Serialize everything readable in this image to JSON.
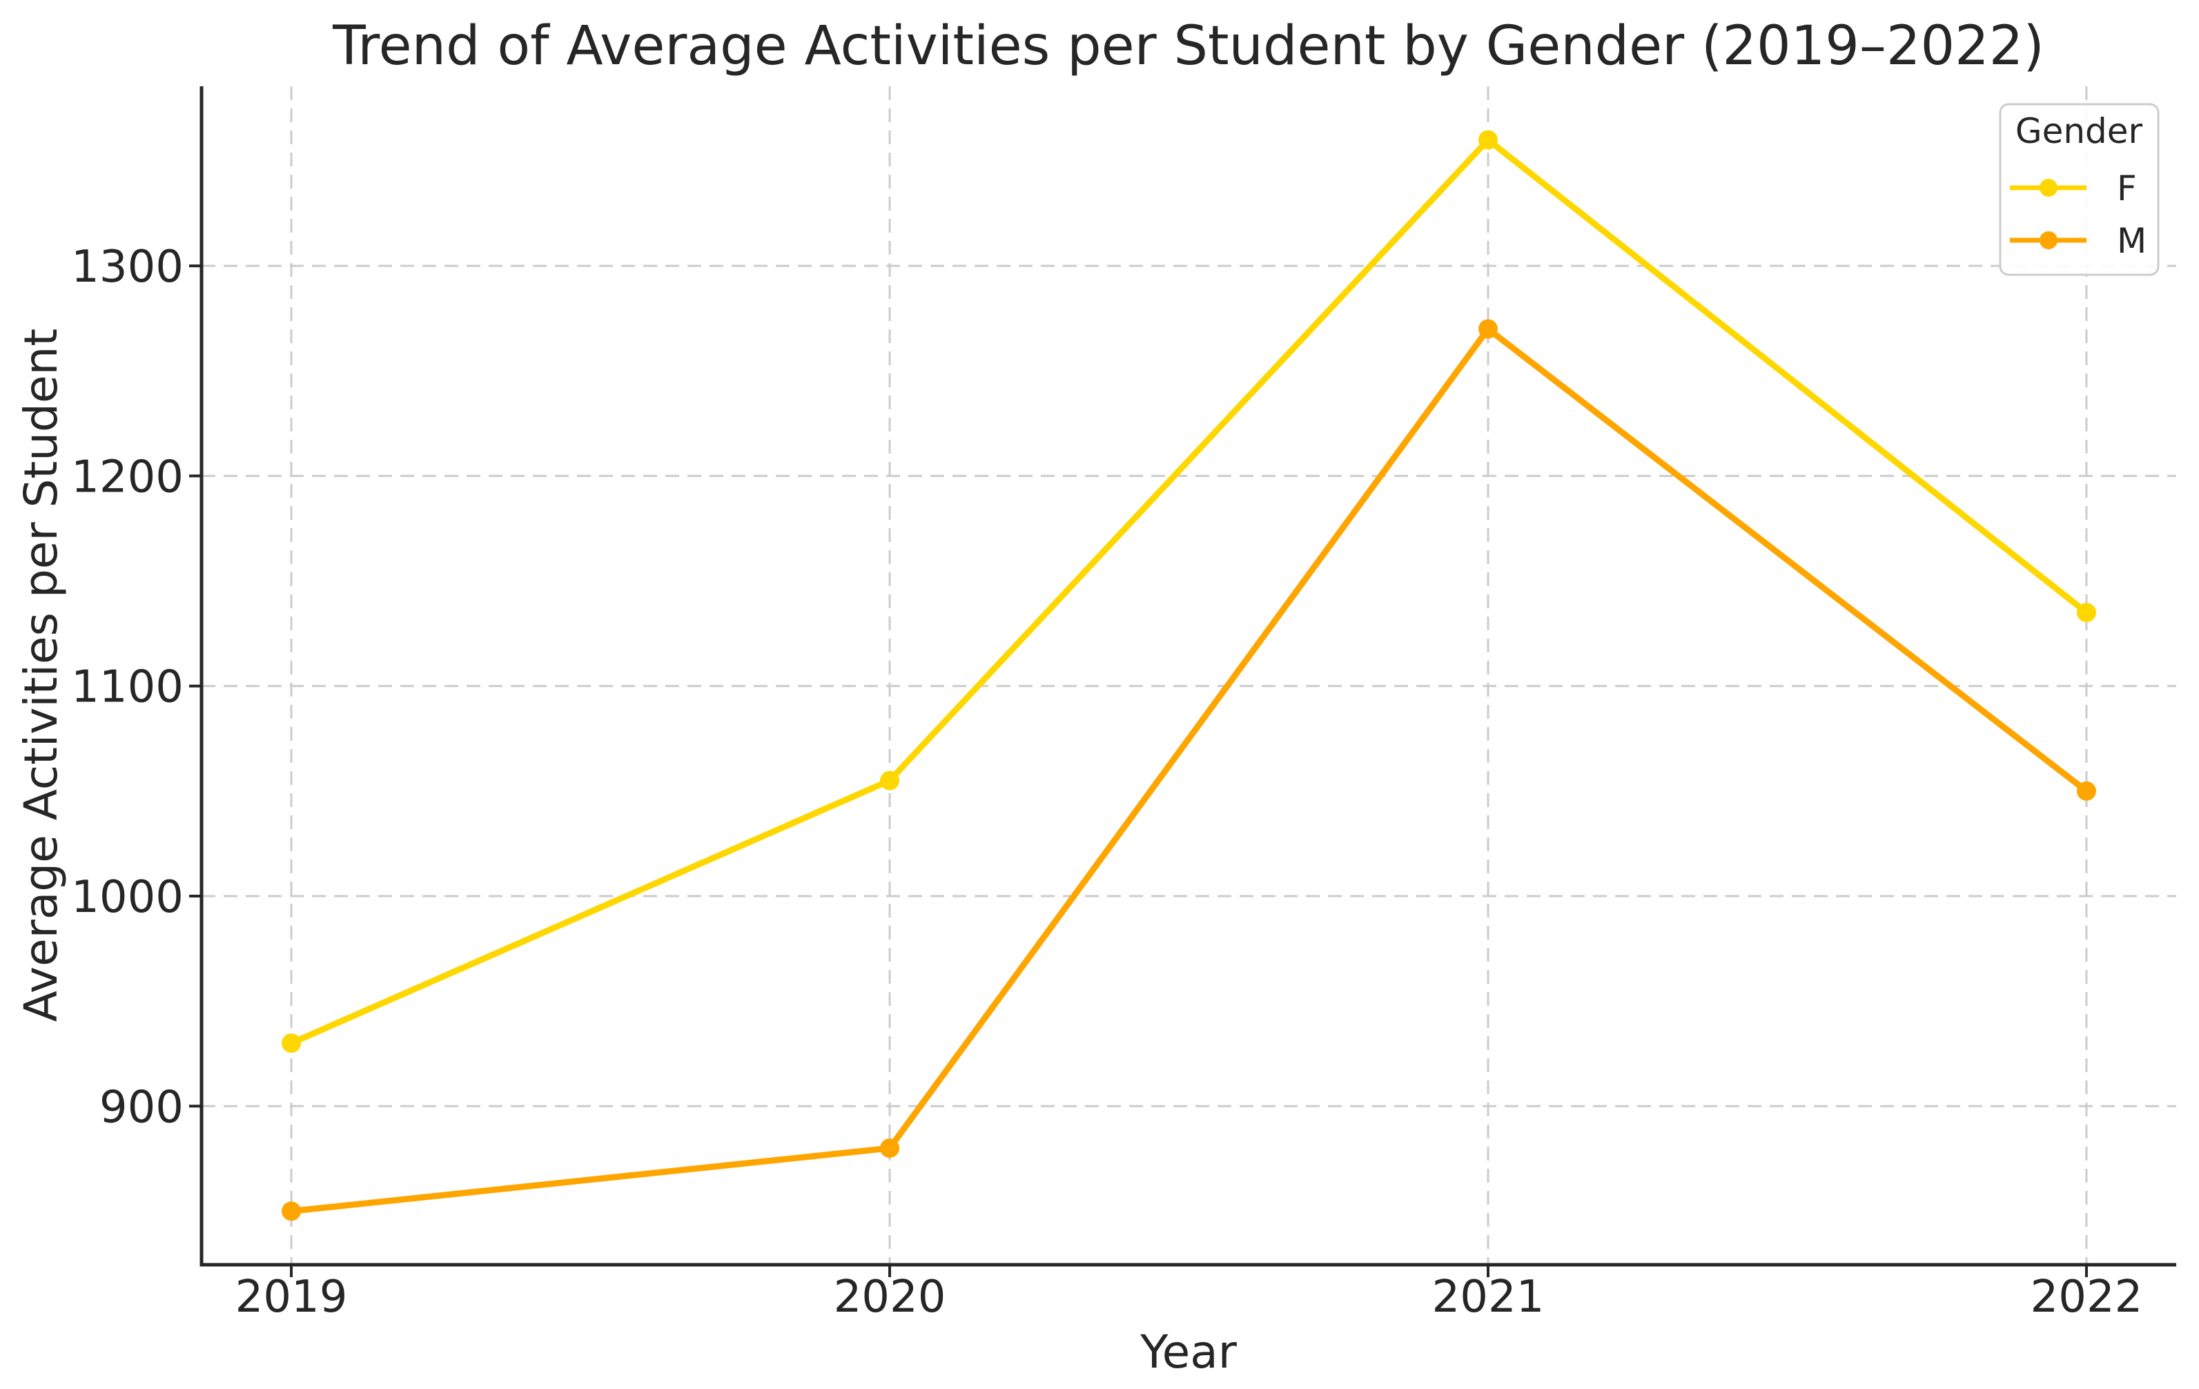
{
  "chart_data": {
    "type": "line",
    "title": "Trend of Average Activities per Student by Gender (2019–2022)",
    "xlabel": "Year",
    "ylabel": "Average Activities per Student",
    "x": [
      2019,
      2020,
      2021,
      2022
    ],
    "series": [
      {
        "name": "F",
        "color": "#FFD700",
        "values": [
          930,
          1055,
          1360,
          1135
        ]
      },
      {
        "name": "M",
        "color": "#FFA500",
        "values": [
          850,
          880,
          1270,
          1050
        ]
      }
    ],
    "legend": {
      "title": "Gender",
      "position": "upper right",
      "entries": [
        "F",
        "M"
      ]
    },
    "xticks": {
      "values": [
        2019,
        2020,
        2021,
        2022
      ],
      "labels": [
        "2019",
        "2020",
        "2021",
        "2022"
      ]
    },
    "yticks": {
      "values": [
        900,
        1000,
        1100,
        1200,
        1300
      ],
      "labels": [
        "900",
        "1000",
        "1100",
        "1200",
        "1300"
      ]
    },
    "xlim": [
      2018.85,
      2022.15
    ],
    "ylim": [
      824.5,
      1385.5
    ],
    "grid": true,
    "colors": {
      "background": "#ffffff",
      "grid": "#cccccc",
      "spine": "#262626",
      "text": "#262626",
      "legend_border": "#cccccc",
      "legend_background": "#ffffff"
    }
  }
}
